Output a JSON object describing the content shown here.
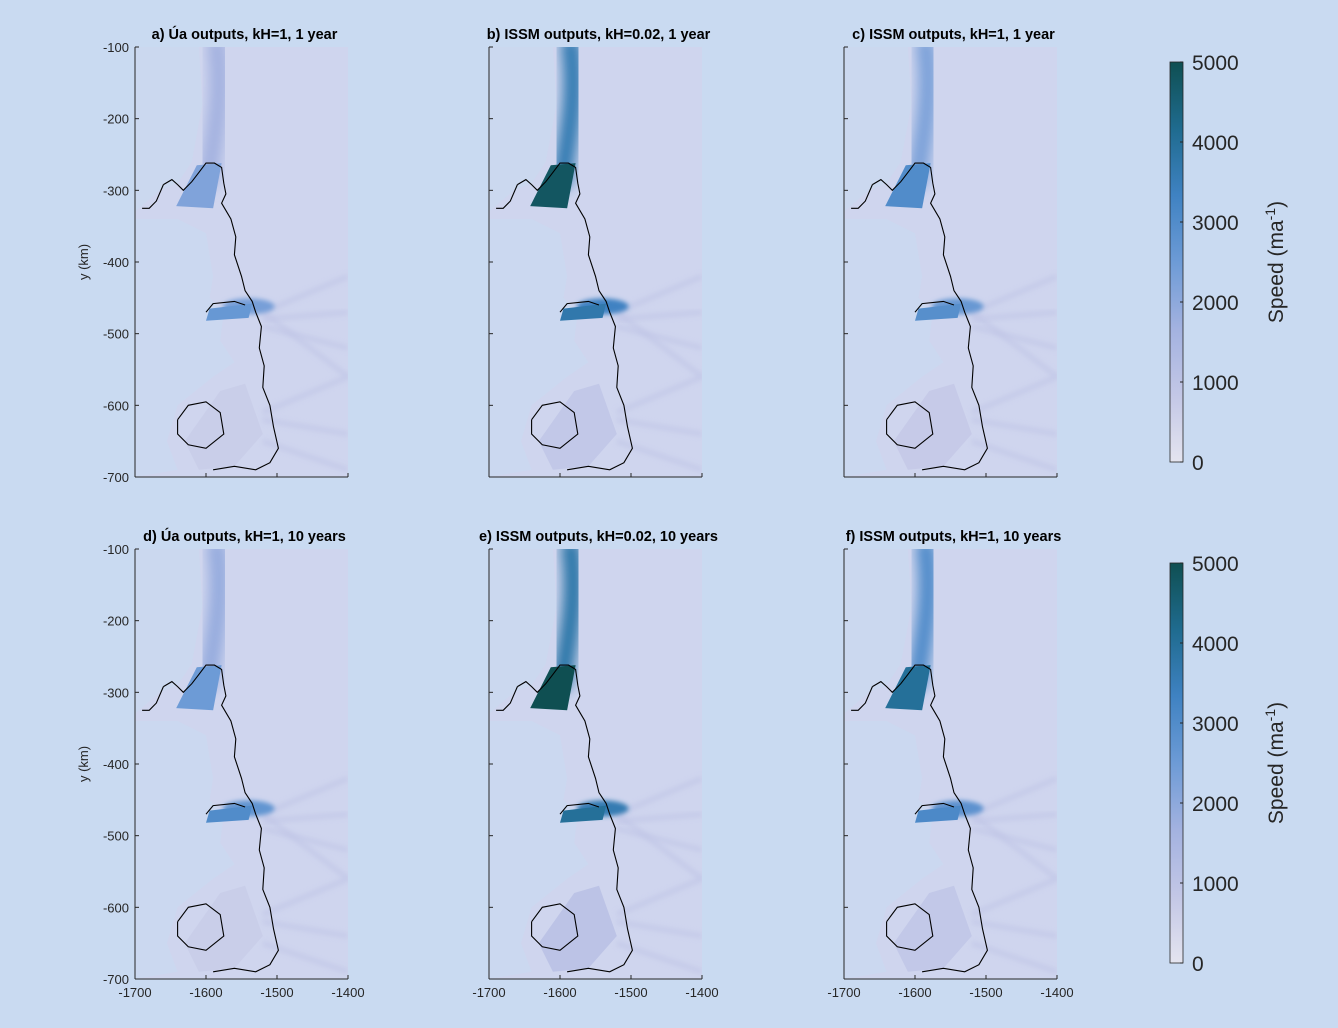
{
  "figure": {
    "background": "#c9daf1",
    "panel_background": "#cfd5ee"
  },
  "chart_data": {
    "type": "heatmap",
    "subtype": "ice-speed maps with grounding-line contours",
    "xlim": [
      -1700,
      -1400
    ],
    "ylim": [
      -700,
      -100
    ],
    "x_ticks": [
      -1700,
      -1600,
      -1500,
      -1400
    ],
    "y_ticks": [
      -100,
      -200,
      -300,
      -400,
      -500,
      -600,
      -700
    ],
    "x_tick_labels": [
      "-1700",
      "-1600",
      "-1500",
      "-1400"
    ],
    "y_tick_labels": [
      "-100",
      "-200",
      "-300",
      "-400",
      "-500",
      "-600",
      "-700"
    ],
    "ylabel": "y (km)",
    "colorbar": {
      "label_main": "Speed (ma",
      "label_sup": "-1",
      "label_close": ")",
      "min": 0,
      "max": 5000,
      "ticks": [
        0,
        1000,
        2000,
        3000,
        4000,
        5000
      ],
      "tick_labels": [
        "0",
        "1000",
        "2000",
        "3000",
        "4000",
        "5000"
      ],
      "colors": [
        "#e4e4ef",
        "#c3c7e6",
        "#a3b2e0",
        "#6d9bd6",
        "#3f82c2",
        "#1f6b8f",
        "#0f4f52"
      ]
    },
    "panels": [
      {
        "id": "a",
        "title": "a) Úa outputs, kH=1, 1 year",
        "main_outlet_speed": 2200,
        "middle_outlet_speed": 2600,
        "southern_shelf_speed": 700
      },
      {
        "id": "b",
        "title": "b) ISSM outputs, kH=0.02, 1 year",
        "main_outlet_speed": 4800,
        "middle_outlet_speed": 3700,
        "southern_shelf_speed": 900
      },
      {
        "id": "c",
        "title": "c) ISSM outputs, kH=1, 1 year",
        "main_outlet_speed": 3000,
        "middle_outlet_speed": 2900,
        "southern_shelf_speed": 800
      },
      {
        "id": "d",
        "title": "d) Úa outputs, kH=1, 10 years",
        "main_outlet_speed": 2500,
        "middle_outlet_speed": 3000,
        "southern_shelf_speed": 700
      },
      {
        "id": "e",
        "title": "e) ISSM outputs, kH=0.02, 10 years",
        "main_outlet_speed": 5000,
        "middle_outlet_speed": 4000,
        "southern_shelf_speed": 1100
      },
      {
        "id": "f",
        "title": "f) ISSM outputs, kH=1, 10 years",
        "main_outlet_speed": 4000,
        "middle_outlet_speed": 3100,
        "southern_shelf_speed": 900
      }
    ]
  }
}
